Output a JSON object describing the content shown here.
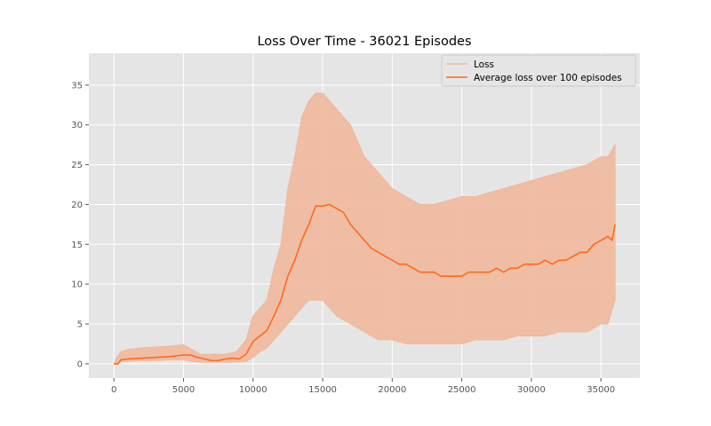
{
  "chart_data": {
    "type": "line",
    "title": "Loss Over Time - 36021 Episodes",
    "xlabel": "",
    "ylabel": "",
    "xlim": [
      -1800,
      37800
    ],
    "ylim": [
      -1.8,
      39
    ],
    "x_ticks": [
      0,
      5000,
      10000,
      15000,
      20000,
      25000,
      30000,
      35000
    ],
    "y_ticks": [
      0,
      5,
      10,
      15,
      20,
      25,
      30,
      35
    ],
    "grid": true,
    "legend_position": "top-right",
    "colors": {
      "background": "#e5e5e5",
      "grid": "#ffffff",
      "loss": "#f0b89c",
      "average": "#ff6a1a"
    },
    "series": [
      {
        "name": "Loss",
        "style": "band",
        "x": [
          0,
          200,
          500,
          1000,
          2000,
          3000,
          4000,
          5000,
          5600,
          6200,
          7000,
          8000,
          8800,
          9500,
          10000,
          10500,
          11000,
          11500,
          12000,
          12500,
          13000,
          13500,
          14000,
          14500,
          15000,
          15500,
          16000,
          16500,
          17000,
          17500,
          18000,
          18500,
          19000,
          20000,
          21000,
          22000,
          23000,
          24000,
          25000,
          26000,
          27000,
          28000,
          29000,
          30000,
          31000,
          32000,
          33000,
          34000,
          35000,
          35500,
          36021
        ],
        "low": [
          0,
          0.1,
          0.3,
          0.3,
          0.4,
          0.4,
          0.5,
          0.5,
          0.3,
          0.2,
          0.2,
          0.2,
          0.2,
          0.3,
          0.8,
          1.5,
          2,
          3,
          4,
          5,
          6,
          7,
          8,
          8,
          8,
          7,
          6,
          5.5,
          5,
          4.5,
          4,
          3.5,
          3,
          3,
          2.5,
          2.5,
          2.5,
          2.5,
          2.5,
          3,
          3,
          3,
          3.5,
          3.5,
          3.5,
          4,
          4,
          4,
          5,
          5,
          8
        ],
        "high": [
          0,
          0.8,
          1.5,
          1.8,
          2,
          2.1,
          2.2,
          2.4,
          1.8,
          1.2,
          1.2,
          1.2,
          1.5,
          3,
          6,
          7,
          8,
          12,
          15,
          22,
          26,
          31,
          33,
          34,
          34,
          33,
          32,
          31,
          30,
          28,
          26,
          25,
          24,
          22,
          21,
          20,
          20,
          20.5,
          21,
          21,
          21.5,
          22,
          22.5,
          23,
          23.5,
          24,
          24.5,
          25,
          26,
          26,
          27.5
        ]
      },
      {
        "name": "Average loss over 100 episodes",
        "style": "line",
        "x": [
          0,
          300,
          500,
          1000,
          2000,
          3000,
          4000,
          5000,
          5500,
          6000,
          6500,
          7000,
          7500,
          8000,
          8500,
          9000,
          9500,
          10000,
          10500,
          11000,
          11500,
          12000,
          12500,
          13000,
          13500,
          14000,
          14500,
          15000,
          15500,
          16000,
          16500,
          17000,
          17500,
          18000,
          18500,
          19000,
          19500,
          20000,
          20500,
          21000,
          21500,
          22000,
          22500,
          23000,
          23500,
          24000,
          24500,
          25000,
          25500,
          26000,
          26500,
          27000,
          27500,
          28000,
          28500,
          29000,
          29500,
          30000,
          30500,
          31000,
          31500,
          32000,
          32500,
          33000,
          33500,
          34000,
          34500,
          35000,
          35500,
          35800,
          36021
        ],
        "y": [
          0,
          0,
          0.5,
          0.6,
          0.7,
          0.8,
          0.9,
          1.1,
          1.1,
          0.8,
          0.6,
          0.4,
          0.4,
          0.6,
          0.7,
          0.6,
          1.2,
          2.8,
          3.5,
          4.2,
          6,
          8,
          11,
          13,
          15.5,
          17.5,
          19.8,
          19.8,
          20,
          19.5,
          19,
          17.5,
          16.5,
          15.5,
          14.5,
          14,
          13.5,
          13,
          12.5,
          12.5,
          12,
          11.5,
          11.5,
          11.5,
          11,
          11,
          11,
          11,
          11.5,
          11.5,
          11.5,
          11.5,
          12,
          11.5,
          12,
          12,
          12.5,
          12.5,
          12.5,
          13,
          12.5,
          13,
          13,
          13.5,
          14,
          14,
          15,
          15.5,
          16,
          15.5,
          17.5
        ]
      }
    ]
  }
}
